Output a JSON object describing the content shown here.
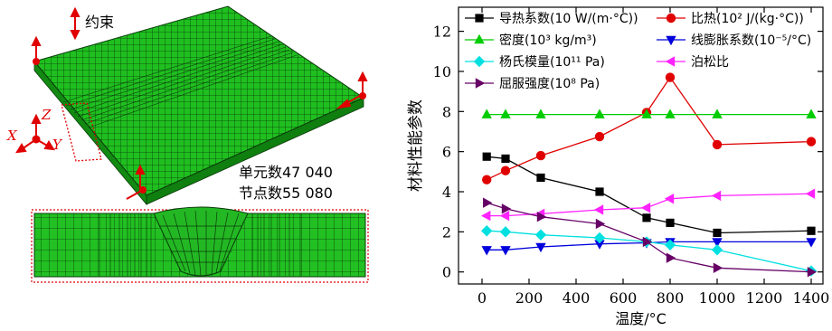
{
  "mesh_panel": {
    "constraint_label": "约束",
    "element_count_label": "单元数47 040",
    "node_count_label": "节点数55 080",
    "axis_x": "X",
    "axis_y": "Y",
    "axis_z": "Z"
  },
  "chart_data": {
    "type": "line",
    "xlabel": "温度/°C",
    "ylabel": "材料性能参数",
    "xlim": [
      -100,
      1450
    ],
    "ylim": [
      -0.6,
      13.2
    ],
    "xticks": [
      0,
      200,
      400,
      600,
      800,
      1000,
      1200,
      1400
    ],
    "yticks": [
      0,
      2,
      4,
      6,
      8,
      10,
      12
    ],
    "grid": false,
    "legend_position": "top",
    "series": [
      {
        "name": "导热系数(10 W/(m·°C))",
        "color": "#000000",
        "marker": "square",
        "x": [
          20,
          100,
          250,
          500,
          700,
          800,
          1000,
          1400
        ],
        "y": [
          5.75,
          5.65,
          4.7,
          4.0,
          2.7,
          2.45,
          1.95,
          2.05
        ]
      },
      {
        "name": "比热(10² J/(kg·°C))",
        "color": "#e00000",
        "marker": "circle",
        "x": [
          20,
          100,
          250,
          500,
          700,
          800,
          1000,
          1400
        ],
        "y": [
          4.6,
          5.05,
          5.8,
          6.75,
          7.95,
          9.7,
          6.35,
          6.5
        ]
      },
      {
        "name": "密度(10³ kg/m³)",
        "color": "#00cc00",
        "marker": "triangle-up",
        "x": [
          20,
          100,
          250,
          500,
          700,
          800,
          1000,
          1400
        ],
        "y": [
          7.85,
          7.85,
          7.85,
          7.85,
          7.85,
          7.85,
          7.85,
          7.85
        ]
      },
      {
        "name": "线膨胀系数(10⁻⁵/°C)",
        "color": "#0000dd",
        "marker": "triangle-down",
        "x": [
          20,
          100,
          250,
          500,
          700,
          800,
          1000,
          1400
        ],
        "y": [
          1.1,
          1.1,
          1.25,
          1.4,
          1.45,
          1.5,
          1.5,
          1.5
        ]
      },
      {
        "name": "杨氏模量(10¹¹ Pa)",
        "color": "#00e0e0",
        "marker": "diamond",
        "x": [
          20,
          100,
          250,
          500,
          700,
          800,
          1000,
          1400
        ],
        "y": [
          2.05,
          2.0,
          1.85,
          1.7,
          1.5,
          1.35,
          1.1,
          0.05
        ]
      },
      {
        "name": "泊松比",
        "color": "#ff22ff",
        "marker": "triangle-left",
        "x": [
          20,
          100,
          250,
          500,
          700,
          800,
          1000,
          1400
        ],
        "y": [
          2.8,
          2.8,
          2.9,
          3.1,
          3.2,
          3.65,
          3.8,
          3.9
        ]
      },
      {
        "name": "屈服强度(10⁸ Pa)",
        "color": "#660066",
        "marker": "triangle-right",
        "x": [
          20,
          100,
          250,
          500,
          700,
          800,
          1000,
          1400
        ],
        "y": [
          3.45,
          3.15,
          2.75,
          2.4,
          1.5,
          0.7,
          0.2,
          0.0
        ]
      }
    ]
  }
}
